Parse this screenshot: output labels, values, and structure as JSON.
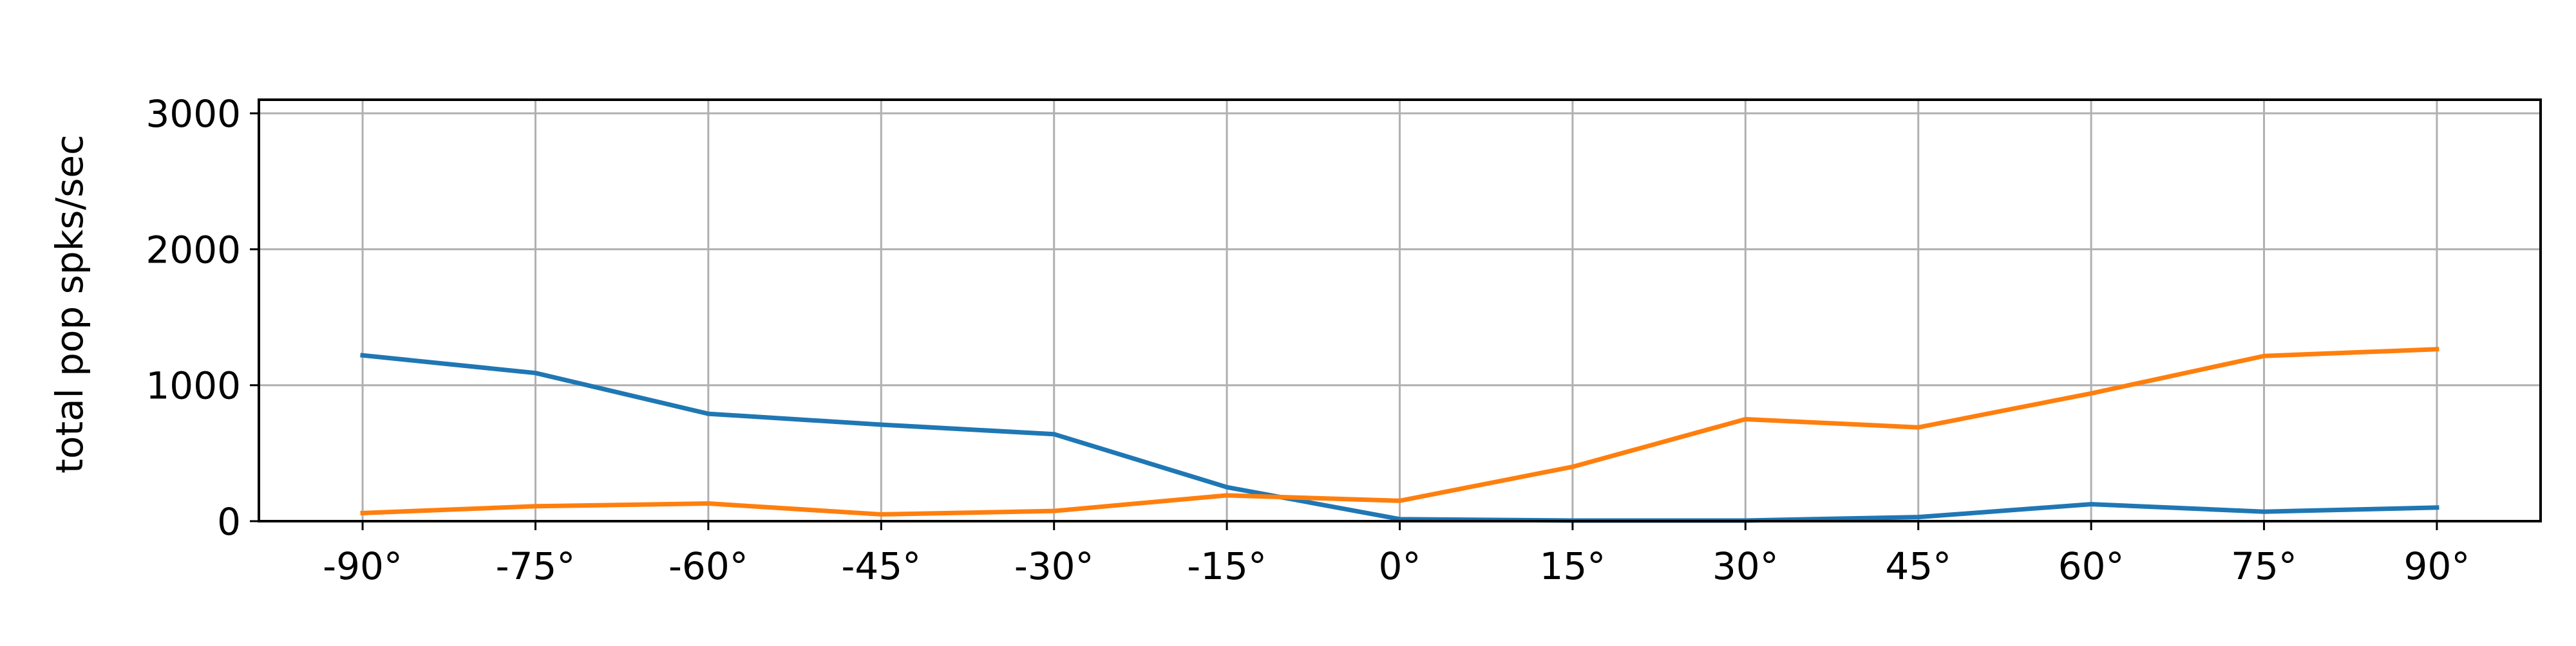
{
  "chart_data": {
    "type": "line",
    "title": "",
    "xlabel": "",
    "ylabel": "total pop spks/sec",
    "x": [
      -90,
      -75,
      -60,
      -45,
      -30,
      -15,
      0,
      15,
      30,
      45,
      60,
      75,
      90
    ],
    "xtick_labels": [
      "-90°",
      "-75°",
      "-60°",
      "-45°",
      "-30°",
      "-15°",
      "0°",
      "15°",
      "30°",
      "45°",
      "60°",
      "75°",
      "90°"
    ],
    "yticks": [
      0,
      1000,
      2000,
      3000
    ],
    "ytick_labels": [
      "0",
      "1000",
      "2000",
      "3000"
    ],
    "xlim": [
      -99,
      99
    ],
    "ylim": [
      0,
      3100
    ],
    "grid": true,
    "legend": false,
    "series": [
      {
        "color": "#1f77b4",
        "values": [
          1220,
          1090,
          790,
          710,
          640,
          250,
          15,
          5,
          5,
          30,
          125,
          70,
          100
        ]
      },
      {
        "color": "#ff7f0e",
        "values": [
          60,
          110,
          130,
          50,
          75,
          190,
          150,
          400,
          750,
          690,
          940,
          1215,
          1265
        ]
      }
    ]
  }
}
